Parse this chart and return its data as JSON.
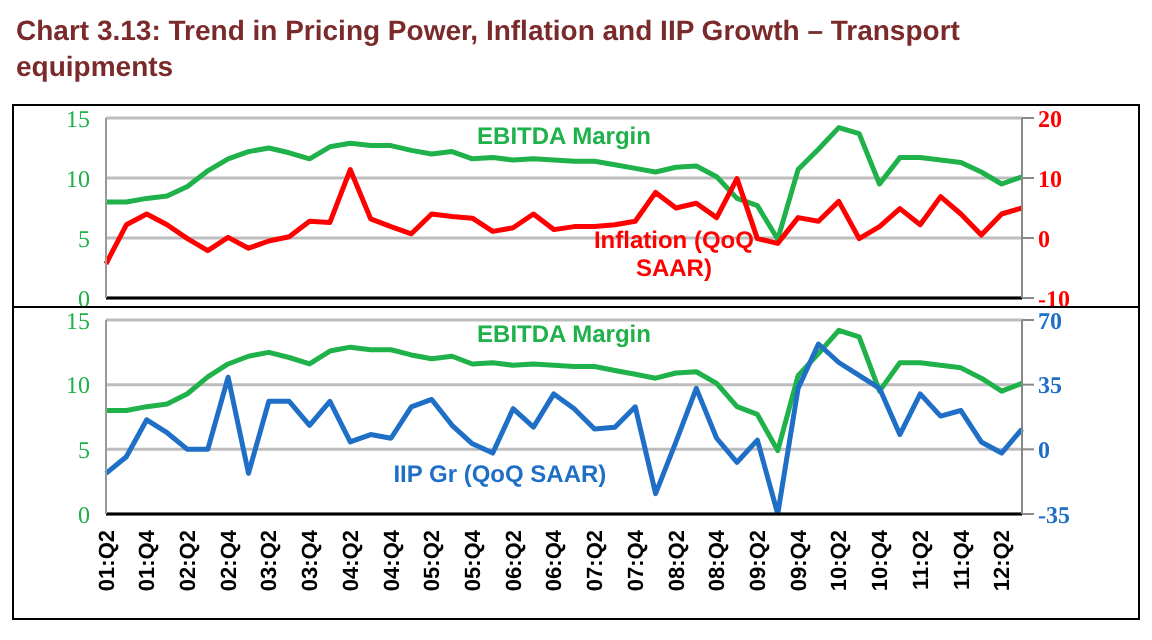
{
  "chart_data": [
    {
      "type": "line",
      "title": "Chart 3.13: Trend in Pricing Power, Inflation and IIP Growth – Transport equipments",
      "categories": [
        null,
        null,
        null,
        null,
        null,
        null,
        null,
        null,
        null,
        null,
        null,
        null,
        null,
        null,
        null,
        null,
        null,
        null,
        null,
        null,
        null,
        null,
        null,
        null,
        null,
        null,
        null,
        null,
        null,
        null,
        null,
        null,
        null,
        null,
        null,
        null,
        null,
        null,
        null,
        null,
        null,
        null,
        null,
        null,
        null,
        null
      ],
      "series": [
        {
          "name": "EBITDA Margin",
          "color": "#1fb14a",
          "values": [
            8.0,
            8.0,
            8.3,
            8.5,
            9.3,
            10.6,
            11.6,
            12.2,
            12.5,
            12.1,
            11.6,
            12.6,
            12.9,
            12.7,
            12.7,
            12.3,
            12.0,
            12.2,
            11.6,
            11.7,
            11.5,
            11.6,
            11.5,
            11.4,
            11.4,
            11.1,
            10.8,
            10.5,
            10.9,
            11.0,
            10.1,
            8.3,
            7.7,
            4.9,
            10.7,
            12.4,
            14.2,
            13.7,
            9.5,
            11.7,
            11.7,
            11.5,
            11.3,
            10.5,
            9.5,
            10.1
          ]
        },
        {
          "name": "Inflation (QoQ SAAR)",
          "color": "#ff0000",
          "axis": "y2",
          "values": [
            -4.3,
            2.2,
            4.0,
            2.2,
            -0.1,
            -2.1,
            0.1,
            -1.7,
            -0.5,
            0.2,
            2.8,
            2.6,
            11.4,
            3.2,
            1.9,
            0.7,
            4.0,
            3.6,
            3.3,
            1.1,
            1.7,
            4.0,
            1.4,
            1.9,
            1.9,
            2.2,
            2.8,
            7.6,
            5.0,
            5.8,
            3.4,
            9.9,
            -0.1,
            -0.9,
            3.4,
            2.8,
            6.1,
            -0.1,
            1.9,
            4.9,
            2.2,
            6.9,
            4.0,
            0.5,
            4.0,
            5.0
          ]
        }
      ],
      "ylim": [
        0,
        15
      ],
      "yticks": [
        0,
        5,
        10,
        15
      ],
      "y2lim": [
        -10,
        20
      ],
      "y2ticks": [
        -10,
        0,
        10,
        20
      ],
      "grid": "y",
      "legend": false,
      "marker": "none",
      "tick_labels": "y"
    },
    {
      "type": "line",
      "categories": [
        "01:Q2",
        null,
        "01:Q4",
        null,
        "02:Q2",
        null,
        "02:Q4",
        null,
        "03:Q2",
        null,
        "03:Q4",
        null,
        "04:Q2",
        null,
        "04:Q4",
        null,
        "05:Q2",
        null,
        "05:Q4",
        null,
        "06:Q2",
        null,
        "06:Q4",
        null,
        "07:Q2",
        null,
        "07:Q4",
        null,
        "08:Q2",
        null,
        "08:Q4",
        null,
        "09:Q2",
        null,
        "09:Q4",
        null,
        "10:Q2",
        null,
        "10:Q4",
        null,
        "11:Q2",
        null,
        "11:Q4",
        null,
        "12:Q2",
        null
      ],
      "series": [
        {
          "name": "EBITDA Margin",
          "color": "#1fb14a",
          "values": [
            8.0,
            8.0,
            8.3,
            8.5,
            9.3,
            10.6,
            11.6,
            12.2,
            12.5,
            12.1,
            11.6,
            12.6,
            12.9,
            12.7,
            12.7,
            12.3,
            12.0,
            12.2,
            11.6,
            11.7,
            11.5,
            11.6,
            11.5,
            11.4,
            11.4,
            11.1,
            10.8,
            10.5,
            10.9,
            11.0,
            10.1,
            8.3,
            7.7,
            4.9,
            10.7,
            12.4,
            14.2,
            13.7,
            9.5,
            11.7,
            11.7,
            11.5,
            11.3,
            10.5,
            9.5,
            10.1
          ]
        },
        {
          "name": "IIP Gr (QoQ SAAR)",
          "color": "#1f6fc6",
          "axis": "y2",
          "values": [
            -13,
            -4,
            16,
            9,
            0,
            0,
            39,
            -13,
            26,
            26,
            13,
            26,
            4,
            8,
            6,
            23,
            27,
            13,
            3,
            -2,
            22,
            12,
            30,
            22,
            11,
            12,
            23,
            -24,
            4,
            33,
            6,
            -7,
            5,
            -35,
            33,
            57,
            47,
            40,
            33,
            8,
            30,
            18,
            21,
            4,
            -2,
            11
          ]
        }
      ],
      "ylim": [
        0,
        15
      ],
      "yticks": [
        0,
        5,
        10,
        15
      ],
      "y2lim": [
        -35,
        70
      ],
      "y2ticks": [
        -35,
        0,
        35,
        70
      ],
      "grid": "y",
      "legend": false,
      "marker": "none"
    }
  ]
}
